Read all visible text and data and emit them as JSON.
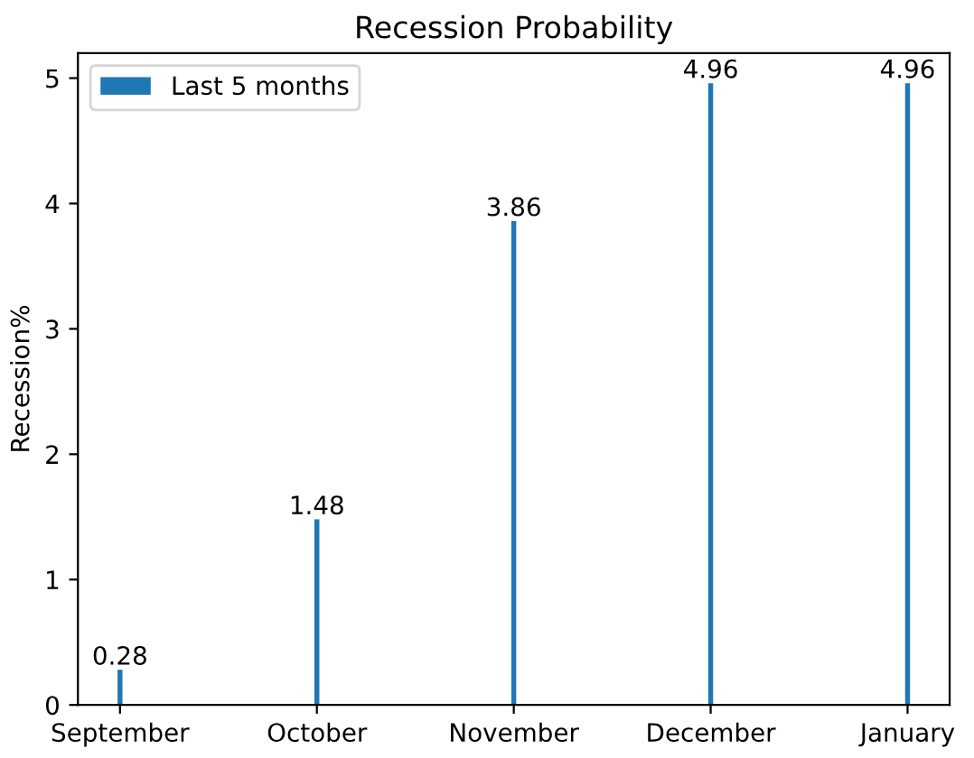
{
  "chart_data": {
    "type": "bar",
    "title": "Recession Probability",
    "ylabel": "Recession%",
    "categories": [
      "September",
      "October",
      "November",
      "December",
      "January"
    ],
    "series": [
      {
        "name": "Last 5 months",
        "color": "#1f77b4",
        "values": [
          0.28,
          1.48,
          3.86,
          4.96,
          4.96
        ]
      }
    ],
    "ylim": [
      0,
      5.2
    ],
    "yticks": [
      0,
      1,
      2,
      3,
      4,
      5
    ],
    "data_labels": true,
    "legend": "top left",
    "grid": false
  }
}
